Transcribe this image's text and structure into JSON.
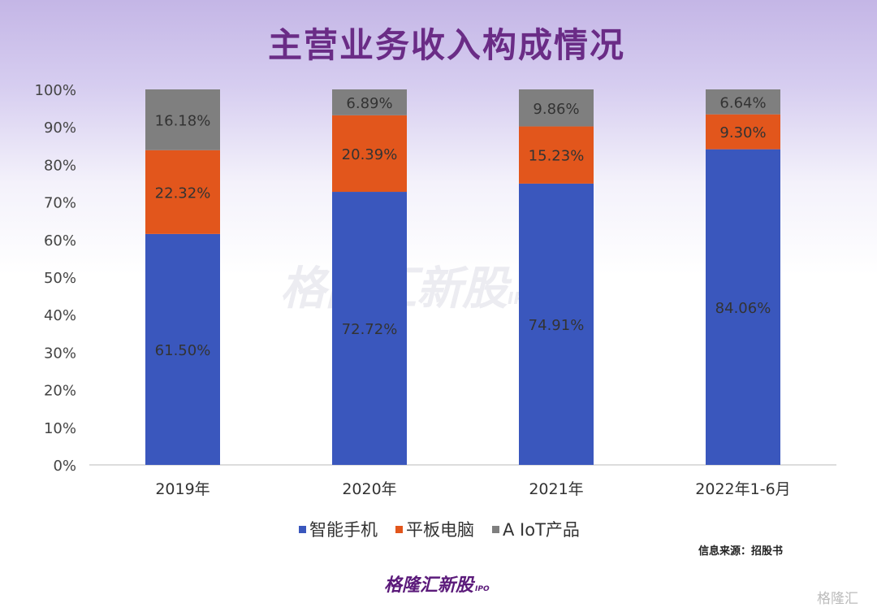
{
  "title": "主营业务收入构成情况",
  "source": "信息来源：招股书",
  "logo": {
    "text": "格隆汇新股",
    "sub": "IPO"
  },
  "corner_watermark": "格隆汇",
  "chart_data": {
    "type": "stacked-bar",
    "title": "主营业务收入构成情况",
    "categories": [
      "2019年",
      "2020年",
      "2021年",
      "2022年1-6月"
    ],
    "series": [
      {
        "name": "智能手机",
        "color": "#3a57bd",
        "values": [
          61.5,
          72.72,
          74.91,
          84.06
        ],
        "labels": [
          "61.50%",
          "72.72%",
          "74.91%",
          "84.06%"
        ]
      },
      {
        "name": "平板电脑",
        "color": "#e2561c",
        "values": [
          22.32,
          20.39,
          15.23,
          9.3
        ],
        "labels": [
          "22.32%",
          "20.39%",
          "15.23%",
          "9.30%"
        ]
      },
      {
        "name": "A IoT产品",
        "color": "#7f7f7f",
        "values": [
          16.18,
          6.89,
          9.86,
          6.64
        ],
        "labels": [
          "16.18%",
          "6.89%",
          "9.86%",
          "6.64%"
        ]
      }
    ],
    "ylim": [
      0,
      100
    ],
    "yticks": [
      "0%",
      "10%",
      "20%",
      "30%",
      "40%",
      "50%",
      "60%",
      "70%",
      "80%",
      "90%",
      "100%"
    ],
    "grid": false,
    "legend": "bottom"
  }
}
